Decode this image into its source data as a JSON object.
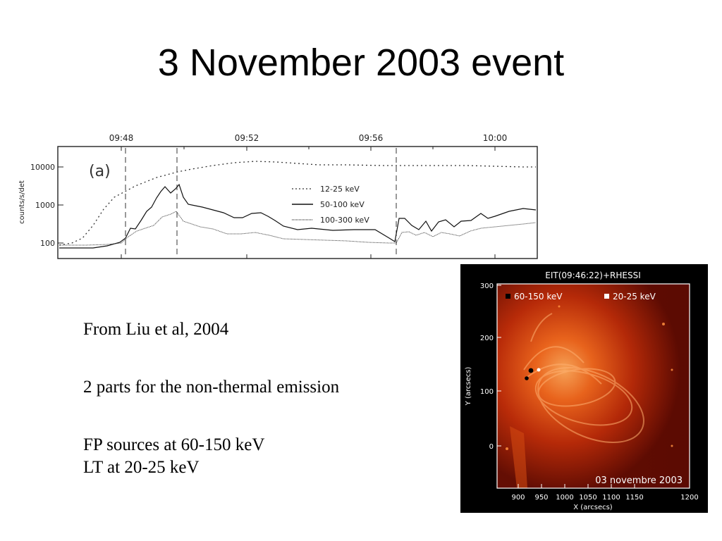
{
  "slide": {
    "title": "3 November 2003 event"
  },
  "lightcurve": {
    "panel_label": "(a)",
    "time_ticks": [
      "09:48",
      "09:52",
      "09:56",
      "10:00"
    ],
    "ylabel": "counts/s/det",
    "y_ticks": [
      "10000",
      "1000",
      "100"
    ],
    "legend": [
      "12-25 keV",
      "50-100 keV",
      "100-300 keV"
    ]
  },
  "text": {
    "source": "From Liu et al, 2004",
    "line2": "2 parts for the non-thermal emission",
    "line3": "FP sources at 60-150 keV",
    "line4": "LT at 20-25 keV"
  },
  "solar_image": {
    "title": "EIT(09:46:22)+RHESSI",
    "legend": [
      "60-150 keV",
      "20-25 keV"
    ],
    "legend_colors": [
      "#000000",
      "#ffffff"
    ],
    "date_label": "03 novembre 2003",
    "x_label": "X (arcsecs)",
    "y_label": "Y (arcsecs)",
    "x_ticks": [
      "900",
      "950",
      "1000",
      "1050",
      "1100",
      "1150",
      "1200"
    ],
    "y_ticks": [
      "300",
      "200",
      "100",
      "0"
    ]
  }
}
